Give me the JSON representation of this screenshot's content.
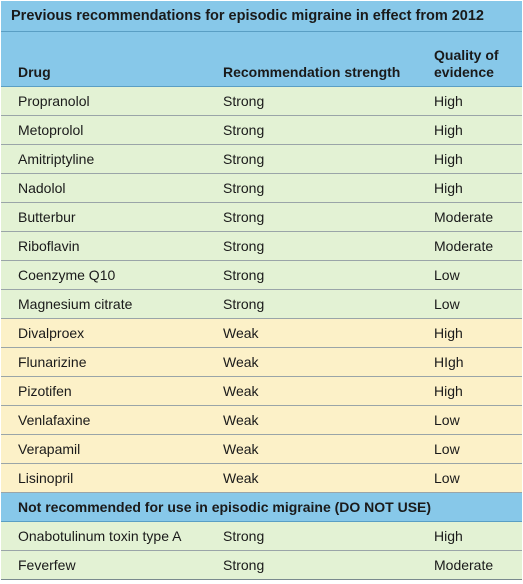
{
  "table": {
    "title": "Previous recommendations for episodic migraine in effect from 2012",
    "headers": {
      "drug": "Drug",
      "strength": "Recommendation strength",
      "quality": "Quality of evidence"
    },
    "rows": [
      {
        "drug": "Propranolol",
        "strength": "Strong",
        "quality": "High",
        "group": "strong"
      },
      {
        "drug": "Metoprolol",
        "strength": "Strong",
        "quality": "High",
        "group": "strong"
      },
      {
        "drug": "Amitriptyline",
        "strength": "Strong",
        "quality": "High",
        "group": "strong"
      },
      {
        "drug": "Nadolol",
        "strength": "Strong",
        "quality": "High",
        "group": "strong"
      },
      {
        "drug": "Butterbur",
        "strength": "Strong",
        "quality": "Moderate",
        "group": "strong"
      },
      {
        "drug": "Riboflavin",
        "strength": "Strong",
        "quality": "Moderate",
        "group": "strong"
      },
      {
        "drug": "Coenzyme Q10",
        "strength": "Strong",
        "quality": "Low",
        "group": "strong"
      },
      {
        "drug": "Magnesium citrate",
        "strength": "Strong",
        "quality": "Low",
        "group": "strong"
      },
      {
        "drug": "Divalproex",
        "strength": "Weak",
        "quality": "High",
        "group": "weak"
      },
      {
        "drug": "Flunarizine",
        "strength": "Weak",
        "quality": "HIgh",
        "group": "weak"
      },
      {
        "drug": "Pizotifen",
        "strength": "Weak",
        "quality": "High",
        "group": "weak"
      },
      {
        "drug": "Venlafaxine",
        "strength": "Weak",
        "quality": "Low",
        "group": "weak"
      },
      {
        "drug": "Verapamil",
        "strength": "Weak",
        "quality": "Low",
        "group": "weak"
      },
      {
        "drug": "Lisinopril",
        "strength": "Weak",
        "quality": "Low",
        "group": "weak"
      }
    ],
    "section": "Not recommended for use in episodic migraine (DO NOT USE)",
    "not_recommended": [
      {
        "drug": "Onabotulinum toxin type A",
        "strength": "Strong",
        "quality": "High"
      },
      {
        "drug": "Feverfew",
        "strength": "Strong",
        "quality": "Moderate"
      }
    ],
    "colors": {
      "header_bg": "#87c8e9",
      "strong_bg": "#e3f2d4",
      "weak_bg": "#fcf1c8"
    }
  }
}
